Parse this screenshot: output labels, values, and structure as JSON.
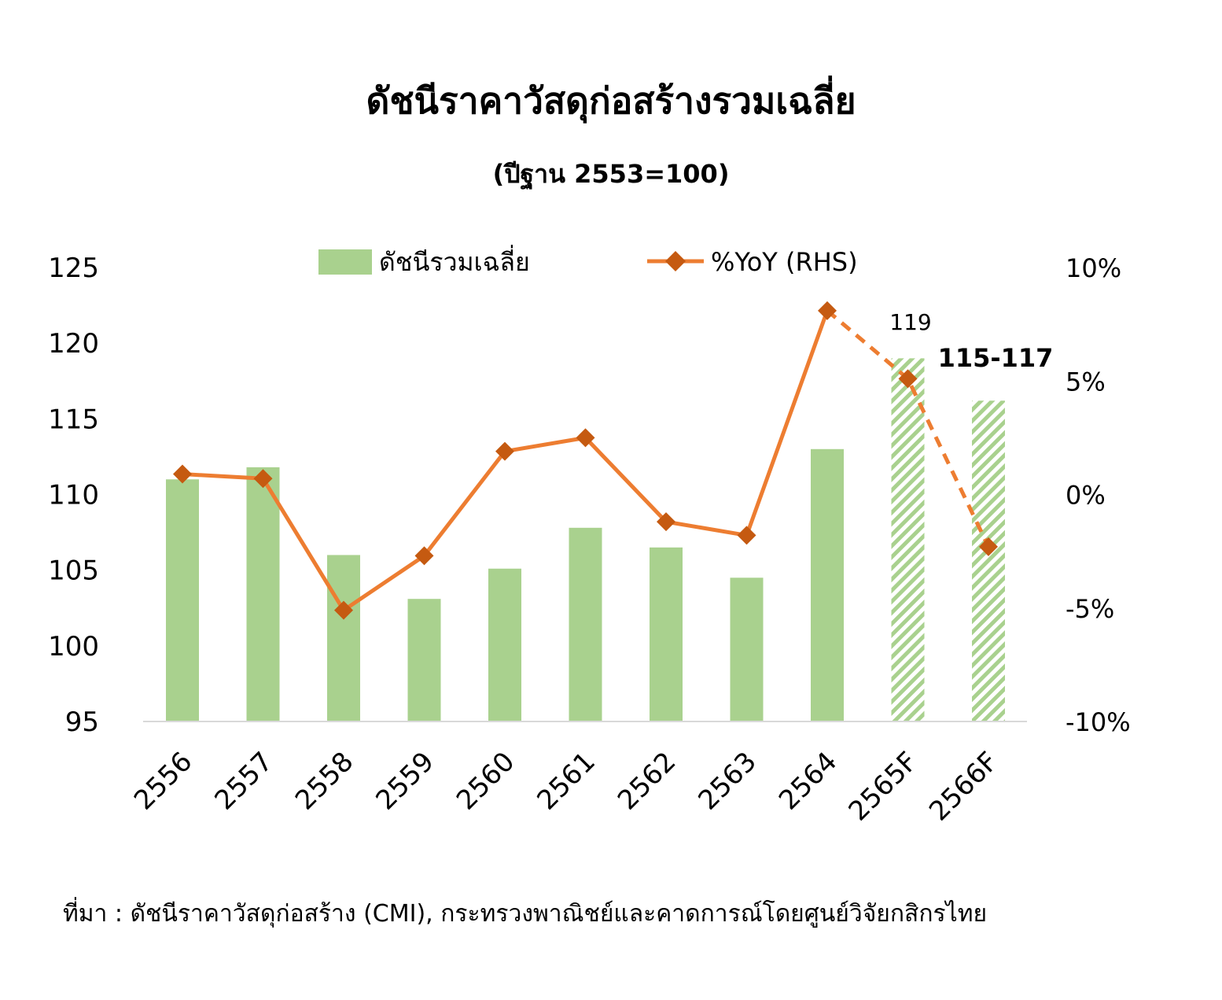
{
  "title": "ดัชนีราคาวัสดุก่อสร้างรวมเฉลี่ย",
  "subtitle": "(ปีฐาน 2553=100)",
  "source": "ที่มา :  ดัชนีราคาวัสดุก่อสร้าง (CMI), กระทรวงพาณิชย์และคาดการณ์โดยศูนย์วิจัยกสิกรไทย",
  "colors": {
    "bar": "#a9d18e",
    "line": "#ed7d31",
    "marker": "#c55a11",
    "axis": "#d9d9d9"
  },
  "chart_data": {
    "type": "bar",
    "categories": [
      "2556",
      "2557",
      "2558",
      "2559",
      "2560",
      "2561",
      "2562",
      "2563",
      "2564",
      "2565F",
      "2566F"
    ],
    "series": [
      {
        "name": "ดัชนีรวมเฉลี่ย",
        "axis": "left",
        "type": "bar",
        "values": [
          111.0,
          111.8,
          106.0,
          103.1,
          105.1,
          107.8,
          106.5,
          104.5,
          113.0,
          119.0,
          116.2
        ],
        "forecast_from_index": 9
      },
      {
        "name": "%YoY (RHS)",
        "axis": "right",
        "type": "line",
        "values": [
          0.9,
          0.7,
          -5.1,
          -2.7,
          1.9,
          2.5,
          -1.2,
          -1.8,
          8.1,
          5.1,
          -2.3
        ],
        "forecast_from_index": 8
      }
    ],
    "left_axis": {
      "min": 95,
      "max": 125,
      "ticks": [
        "95",
        "100",
        "105",
        "110",
        "115",
        "120",
        "125"
      ]
    },
    "right_axis": {
      "min": -10,
      "max": 10,
      "ticks": [
        "-10%",
        "-5%",
        "0%",
        "5%",
        "10%"
      ]
    },
    "annotations": [
      "119",
      "115-117"
    ],
    "legend_position": "top",
    "grid": false
  }
}
